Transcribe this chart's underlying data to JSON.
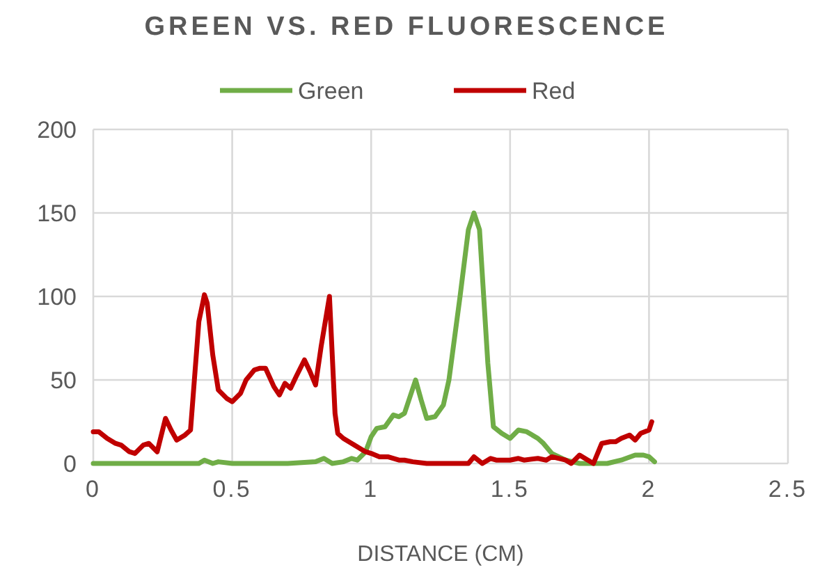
{
  "chart_data": {
    "type": "line",
    "title": "GREEN VS. RED FLUORESCENCE",
    "xlabel": "DISTANCE (CM)",
    "xlim": [
      0,
      2.5
    ],
    "xticks": [
      0,
      0.5,
      1,
      1.5,
      2,
      2.5
    ],
    "ylim": [
      0,
      200
    ],
    "yticks": [
      0,
      50,
      100,
      150,
      200
    ],
    "grid": true,
    "legend": "top",
    "marker": "none",
    "line_style": "solid",
    "series": [
      {
        "name": "Green",
        "color": "#70ad47",
        "x": [
          0,
          0.1,
          0.2,
          0.3,
          0.38,
          0.4,
          0.43,
          0.45,
          0.5,
          0.6,
          0.7,
          0.8,
          0.83,
          0.86,
          0.9,
          0.93,
          0.95,
          0.98,
          1.0,
          1.02,
          1.05,
          1.08,
          1.1,
          1.12,
          1.16,
          1.18,
          1.2,
          1.23,
          1.26,
          1.28,
          1.32,
          1.35,
          1.37,
          1.39,
          1.42,
          1.44,
          1.47,
          1.5,
          1.53,
          1.56,
          1.6,
          1.62,
          1.65,
          1.7,
          1.75,
          1.8,
          1.85,
          1.9,
          1.95,
          1.98,
          2.0,
          2.02
        ],
        "values": [
          0,
          0,
          0,
          0,
          0,
          2,
          0,
          1,
          0,
          0,
          0,
          1,
          3,
          0,
          1,
          3,
          2,
          7,
          16,
          21,
          22,
          29,
          28,
          30,
          50,
          38,
          27,
          28,
          35,
          50,
          100,
          140,
          150,
          140,
          60,
          22,
          18,
          15,
          20,
          19,
          15,
          12,
          6,
          2,
          0,
          0,
          0,
          2,
          5,
          5,
          4,
          1
        ]
      },
      {
        "name": "Red",
        "color": "#c00000",
        "x": [
          0,
          0.02,
          0.05,
          0.08,
          0.1,
          0.13,
          0.15,
          0.18,
          0.2,
          0.23,
          0.26,
          0.28,
          0.3,
          0.33,
          0.35,
          0.38,
          0.4,
          0.41,
          0.43,
          0.45,
          0.48,
          0.5,
          0.53,
          0.55,
          0.58,
          0.6,
          0.62,
          0.65,
          0.67,
          0.69,
          0.71,
          0.73,
          0.76,
          0.78,
          0.8,
          0.82,
          0.85,
          0.87,
          0.88,
          0.9,
          0.93,
          0.96,
          0.98,
          1.0,
          1.03,
          1.06,
          1.1,
          1.12,
          1.15,
          1.2,
          1.3,
          1.35,
          1.37,
          1.4,
          1.43,
          1.45,
          1.5,
          1.53,
          1.55,
          1.6,
          1.63,
          1.65,
          1.7,
          1.72,
          1.75,
          1.78,
          1.8,
          1.83,
          1.86,
          1.88,
          1.9,
          1.93,
          1.95,
          1.97,
          2.0,
          2.01
        ],
        "values": [
          19,
          19,
          15,
          12,
          11,
          7,
          6,
          11,
          12,
          7,
          27,
          20,
          14,
          17,
          20,
          85,
          101,
          96,
          65,
          44,
          39,
          37,
          42,
          50,
          56,
          57,
          57,
          46,
          41,
          48,
          45,
          52,
          62,
          55,
          47,
          70,
          100,
          30,
          18,
          15,
          12,
          9,
          7,
          6,
          4,
          4,
          2,
          2,
          1,
          0,
          0,
          0,
          4,
          0,
          3,
          2,
          2,
          3,
          2,
          3,
          2,
          4,
          2,
          0,
          5,
          2,
          0,
          12,
          13,
          13,
          15,
          17,
          14,
          18,
          20,
          25
        ]
      }
    ]
  }
}
